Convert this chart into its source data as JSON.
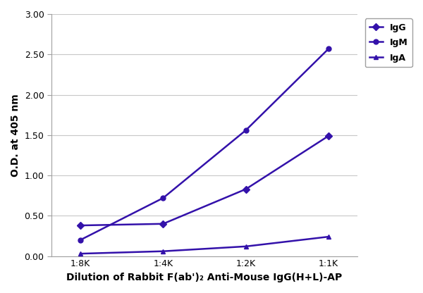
{
  "x_labels": [
    "1:8K",
    "1:4K",
    "1:2K",
    "1:1K"
  ],
  "x_values": [
    0,
    1,
    2,
    3
  ],
  "IgG": [
    0.38,
    0.4,
    0.83,
    1.49
  ],
  "IgM": [
    0.2,
    0.72,
    1.56,
    2.57
  ],
  "IgA": [
    0.03,
    0.06,
    0.12,
    0.24
  ],
  "line_color": "#3311AA",
  "IgG_marker": "D",
  "IgM_marker": "o",
  "IgA_marker": "^",
  "ylabel": "O.D. at 405 nm",
  "xlabel": "Dilution of Rabbit F(ab')₂ Anti-Mouse IgG(H+L)-AP",
  "ylim": [
    0.0,
    3.0
  ],
  "ytick_vals": [
    0.0,
    0.5,
    1.0,
    1.5,
    2.0,
    2.5,
    3.0
  ],
  "ytick_labels": [
    "0.00",
    "0.50",
    "1.00",
    "1.50",
    "2.00",
    "2.50",
    "3.00"
  ],
  "axis_label_fontsize": 10,
  "tick_fontsize": 9,
  "legend_fontsize": 9,
  "background_color": "#ffffff",
  "grid_color": "#c8c8c8",
  "spine_color": "#a0a0a0"
}
